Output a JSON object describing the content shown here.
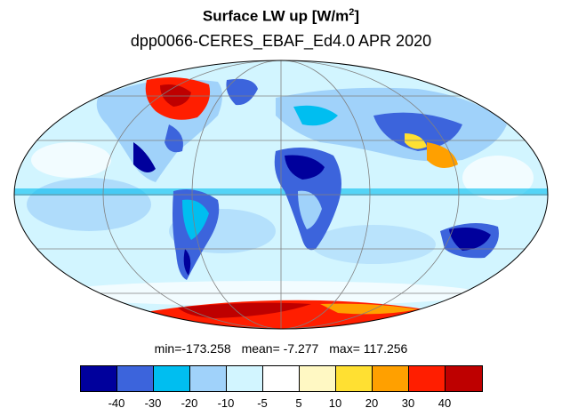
{
  "title": {
    "main": "Surface LW up [W/m",
    "sup": "2",
    "close": "]"
  },
  "subtitle": "dpp0066-CERES_EBAF_Ed4.0  APR 2020",
  "stats": {
    "min": "min=-173.258",
    "mean": "mean=  -7.277",
    "max": "max= 117.256"
  },
  "colorbar": {
    "colors": [
      "#00009c",
      "#3c64dc",
      "#00bef0",
      "#a0d2fa",
      "#d2f5ff",
      "#ffffff",
      "#fff8c3",
      "#ffe032",
      "#ffa000",
      "#ff1e00",
      "#be0000"
    ],
    "labels": [
      "-40",
      "-30",
      "-20",
      "-10",
      "-5",
      "5",
      "10",
      "20",
      "30",
      "40"
    ]
  }
}
